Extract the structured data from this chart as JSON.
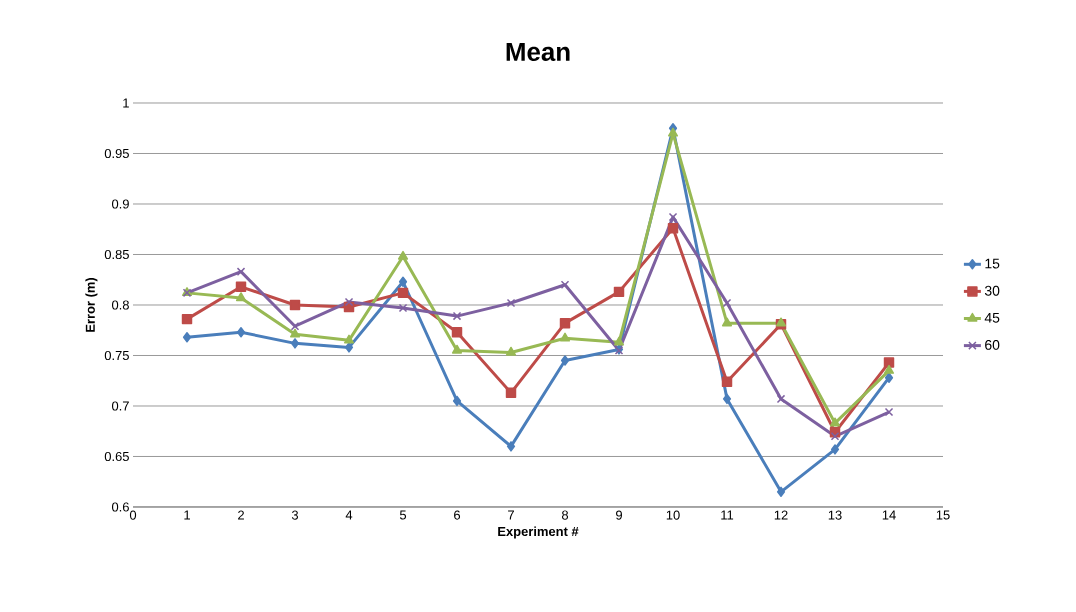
{
  "chart_data": {
    "type": "line",
    "title": "Mean",
    "xlabel": "Experiment #",
    "ylabel": "Error (m)",
    "x": [
      1,
      2,
      3,
      4,
      5,
      6,
      7,
      8,
      9,
      10,
      11,
      12,
      13,
      14
    ],
    "series": [
      {
        "name": "15",
        "color": "#4a7ebb",
        "marker": "diamond",
        "values": [
          0.768,
          0.773,
          0.762,
          0.758,
          0.823,
          0.705,
          0.66,
          0.745,
          0.756,
          0.975,
          0.707,
          0.615,
          0.657,
          0.728
        ]
      },
      {
        "name": "30",
        "color": "#be4b48",
        "marker": "square",
        "values": [
          0.786,
          0.818,
          0.8,
          0.798,
          0.812,
          0.773,
          0.713,
          0.782,
          0.813,
          0.876,
          0.724,
          0.781,
          0.674,
          0.743
        ]
      },
      {
        "name": "45",
        "color": "#98b954",
        "marker": "triangle",
        "values": [
          0.812,
          0.807,
          0.771,
          0.765,
          0.848,
          0.755,
          0.753,
          0.767,
          0.763,
          0.97,
          0.782,
          0.782,
          0.683,
          0.735
        ]
      },
      {
        "name": "60",
        "color": "#7d60a0",
        "marker": "cross",
        "values": [
          0.812,
          0.833,
          0.779,
          0.803,
          0.797,
          0.789,
          0.802,
          0.82,
          0.755,
          0.887,
          0.802,
          0.707,
          0.67,
          0.694
        ]
      }
    ],
    "xlim": [
      0,
      15
    ],
    "xticks": [
      0,
      1,
      2,
      3,
      4,
      5,
      6,
      7,
      8,
      9,
      10,
      11,
      12,
      13,
      14,
      15
    ],
    "ylim": [
      0.6,
      1
    ],
    "yticks": [
      0.6,
      0.65,
      0.7,
      0.75,
      0.8,
      0.85,
      0.9,
      0.95,
      1
    ],
    "grid": "y",
    "legend": "right",
    "line_style": "solid"
  }
}
